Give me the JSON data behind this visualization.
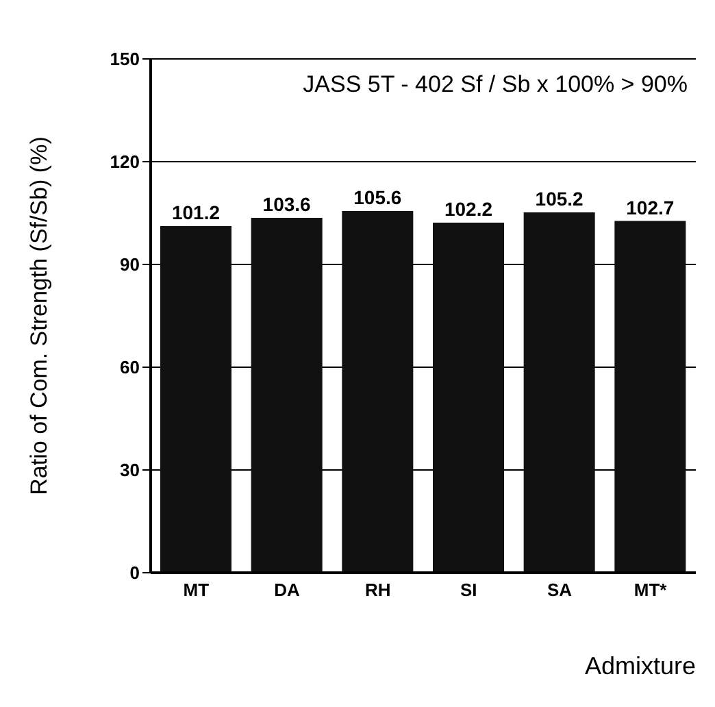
{
  "chart_data": {
    "type": "bar",
    "xlabel": "Admixture",
    "ylabel": "Ratio of Com. Strength (Sf/Sb) (%)",
    "annotations": [
      "JASS 5T - 402 Sf / Sb x 100% > 90%"
    ],
    "categories": [
      "MT",
      "DA",
      "RH",
      "SI",
      "SA",
      "MT*"
    ],
    "values": [
      101.2,
      103.6,
      105.6,
      102.2,
      105.2,
      102.7
    ],
    "color": "#111111",
    "data_labels": true,
    "ylim": [
      0,
      150
    ],
    "yticks": [
      0,
      30,
      60,
      90,
      120,
      150
    ],
    "grid": "y"
  }
}
